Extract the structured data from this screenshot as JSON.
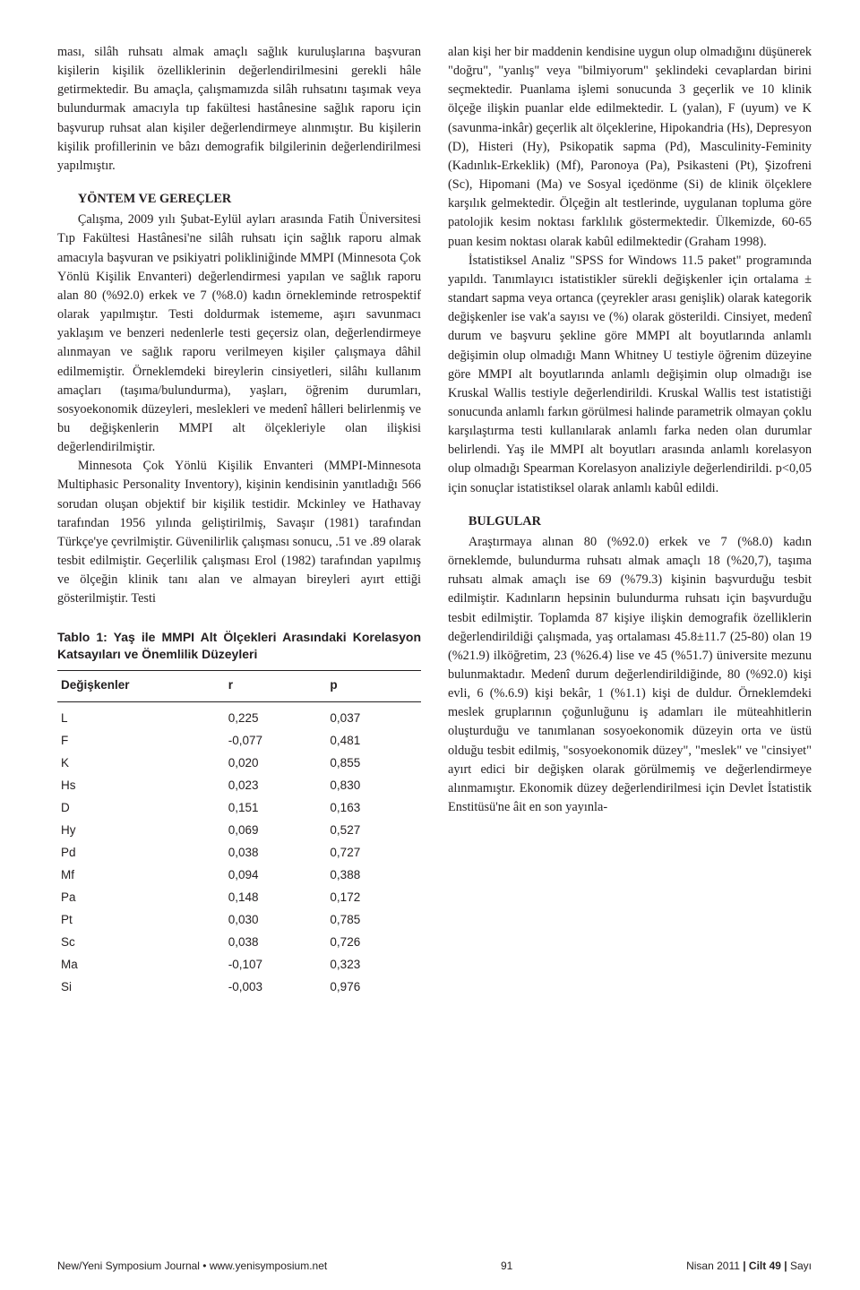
{
  "leftColumn": {
    "para1": "ması, silâh ruhsatı almak amaçlı sağlık kuruluşlarına başvuran kişilerin kişilik özelliklerinin değerlendirilmesini gerekli hâle getirmektedir. Bu amaçla, çalışmamızda silâh ruhsatını taşımak veya bulundurmak amacıyla tıp fakültesi hastânesine sağlık raporu için başvurup ruhsat alan kişiler değerlendirmeye alınmıştır. Bu kişilerin kişilik profillerinin ve bâzı demografik bilgilerinin değerlendirilmesi yapılmıştır.",
    "heading1": "YÖNTEM VE GEREÇLER",
    "para2": "Çalışma, 2009 yılı Şubat-Eylül ayları arasında Fatih Üniversitesi Tıp Fakültesi Hastânesi'ne silâh ruhsatı için sağlık raporu almak amacıyla başvuran ve psikiyatri polikliniğinde MMPI (Minnesota Çok Yönlü Kişilik Envanteri) değerlendirmesi yapılan ve sağlık raporu alan 80 (%92.0) erkek ve 7 (%8.0) kadın örnekle­minde retrospektif olarak yapılmıştır. Testi doldurmak istememe, aşırı savunmacı yaklaşım ve benzeri nedenlerle testi geçersiz olan, değerlendirmeye alınmayan ve sağlık raporu verilmeyen kişiler çalışmaya dâhil edilmemiştir. Örneklemdeki bireylerin cinsiyetleri, silâhı kullanım amaçları (taşıma/bulundurma), yaşları, öğrenim durumları, sosyoekonomik düzeyleri, meslekleri ve medenî hâlleri belirlenmiş ve bu değişkenlerin MMPI alt ölçekleriyle olan ilişkisi değerlendirilmiştir.",
    "para3": "Minnesota Çok Yönlü Kişilik Envanteri (MMPI-Minnesota Multiphasic Personality Inventory), kişinin kendisinin yanıtladığı 566 sorudan oluşan objektif bir kişilik testidir. Mckinley ve Hathavay tarafından 1956 yılında geliştirilmiş, Savaşır (1981) tarafından Türkçe'ye çevrilmiştir. Güvenilirlik çalışması sonucu, .51 ve .89 olarak tesbit edilmiştir. Geçerlilik çalışması Erol (1982) tarafından yapılmış ve ölçeğin klinik tanı alan ve almayan bireyleri ayırt ettiği gösterilmiştir. Testi"
  },
  "table1": {
    "title": "Tablo 1: Yaş ile MMPI Alt Ölçekleri Arasındaki Korelasyon Katsayıları ve Önemlilik Düzeyleri",
    "headers": {
      "var": "Değişkenler",
      "r": "r",
      "p": "p"
    },
    "rows": [
      {
        "var": "L",
        "r": "0,225",
        "p": "0,037"
      },
      {
        "var": "F",
        "r": "-0,077",
        "p": "0,481"
      },
      {
        "var": "K",
        "r": "0,020",
        "p": "0,855"
      },
      {
        "var": "Hs",
        "r": "0,023",
        "p": "0,830"
      },
      {
        "var": "D",
        "r": "0,151",
        "p": "0,163"
      },
      {
        "var": "Hy",
        "r": "0,069",
        "p": "0,527"
      },
      {
        "var": "Pd",
        "r": "0,038",
        "p": "0,727"
      },
      {
        "var": "Mf",
        "r": "0,094",
        "p": "0,388"
      },
      {
        "var": "Pa",
        "r": "0,148",
        "p": "0,172"
      },
      {
        "var": "Pt",
        "r": "0,030",
        "p": "0,785"
      },
      {
        "var": "Sc",
        "r": "0,038",
        "p": "0,726"
      },
      {
        "var": "Ma",
        "r": "-0,107",
        "p": "0,323"
      },
      {
        "var": "Si",
        "r": "-0,003",
        "p": "0,976"
      }
    ]
  },
  "rightColumn": {
    "para1": "alan kişi her bir maddenin kendisine uygun olup olmadığını düşünerek \"doğru\", \"yanlış\" veya \"bilmiyorum\" şeklindeki cevaplardan birini seçmektedir. Puanlama işlemi sonucunda 3 geçerlik ve 10 klinik ölçeğe ilişkin puanlar elde edilmektedir. L (yalan), F (uyum) ve K (savunma-inkâr) geçerlik alt ölçeklerine, Hipokandria (Hs), Depresyon (D), Histeri (Hy), Psikopatik sapma (Pd), Masculinity-Feminity (Kadınlık-Erkeklik) (Mf), Paronoya (Pa), Psikasteni (Pt), Şizofreni (Sc), Hipomani (Ma) ve Sosyal içedönme (Si) de klinik ölçeklere karşılık gelmektedir. Ölçeğin alt testlerinde, uygulanan topluma göre patolojik kesim noktası farklılık göstermektedir. Ülkemizde, 60-65 puan kesim noktası olarak kabûl edilmektedir (Graham 1998).",
    "para2": "İstatistiksel Analiz \"SPSS for Windows 11.5 paket\" programında yapıldı. Tanımlayıcı istatistikler sürekli değişkenler için ortalama ± standart sapma veya ortanca (çeyrekler arası genişlik) olarak kategorik değişkenler ise vak'a sayısı ve (%) olarak gösterildi. Cinsiyet, medenî durum ve başvuru şekline göre MMPI alt boyutlarında anlamlı değişimin olup olmadığı Mann Whitney U testiyle öğrenim düzeyine göre MMPI alt boyutlarında anlamlı değişimin olup olmadığı ise Kruskal Wallis testiyle değerlendirildi. Kruskal Wallis test istatistiği sonucunda anlamlı farkın görülmesi halinde parametrik olmayan çoklu karşılaştırma testi kullanılarak anlamlı farka neden olan durumlar belirlendi. Yaş ile MMPI alt boyutları arasında anlamlı korelasyon olup olmadığı Spearman Korelasyon analiziyle değerlendirildi. p<0,05 için sonuçlar istatistiksel olarak anlamlı kabûl edildi.",
    "heading1": "BULGULAR",
    "para3": "Araştırmaya alınan 80 (%92.0) erkek ve 7 (%8.0) kadın örneklemde, bulundurma ruhsatı almak amaçlı 18 (%20,7), taşıma ruhsatı almak amaçlı ise 69 (%79.3) kişinin başvurduğu tesbit edilmiştir. Kadınların hepsinin bulundurma ruhsatı için başvurduğu tesbit edilmiştir. Toplamda 87 kişiye ilişkin demografik özelliklerin değerlendirildiği çalışmada, yaş ortalaması 45.8±11.7 (25-80) olan 19 (%21.9) ilköğretim, 23 (%26.4) lise ve 45 (%51.7) üniversite mezunu bulunmaktadır. Medenî durum değerlendirildiğinde, 80 (%92.0) kişi evli, 6 (%.6.9) kişi bekâr, 1 (%1.1) kişi de duldur. Örneklemdeki meslek gruplarının çoğunluğunu iş adamları ile müteahhitlerin oluşturduğu ve tanımlanan sosyoekonomik düzeyin orta ve üstü olduğu tesbit edilmiş, \"sosyoekonomik düzey\", \"meslek\" ve \"cinsiyet\" ayırt edici bir değişken olarak görülmemiş ve değerlendirmeye alınmamıştır. Ekonomik düzey değerlendirilmesi için Devlet İstatistik Enstitüsü'ne âit en son yayınla-"
  },
  "footer": {
    "left": "New/Yeni Symposium Journal • www.yenisymposium.net",
    "page": "91",
    "right_prefix": "Nisan 2011 ",
    "right_mid": "| Cilt 49 |",
    "right_suffix": " Sayı"
  }
}
